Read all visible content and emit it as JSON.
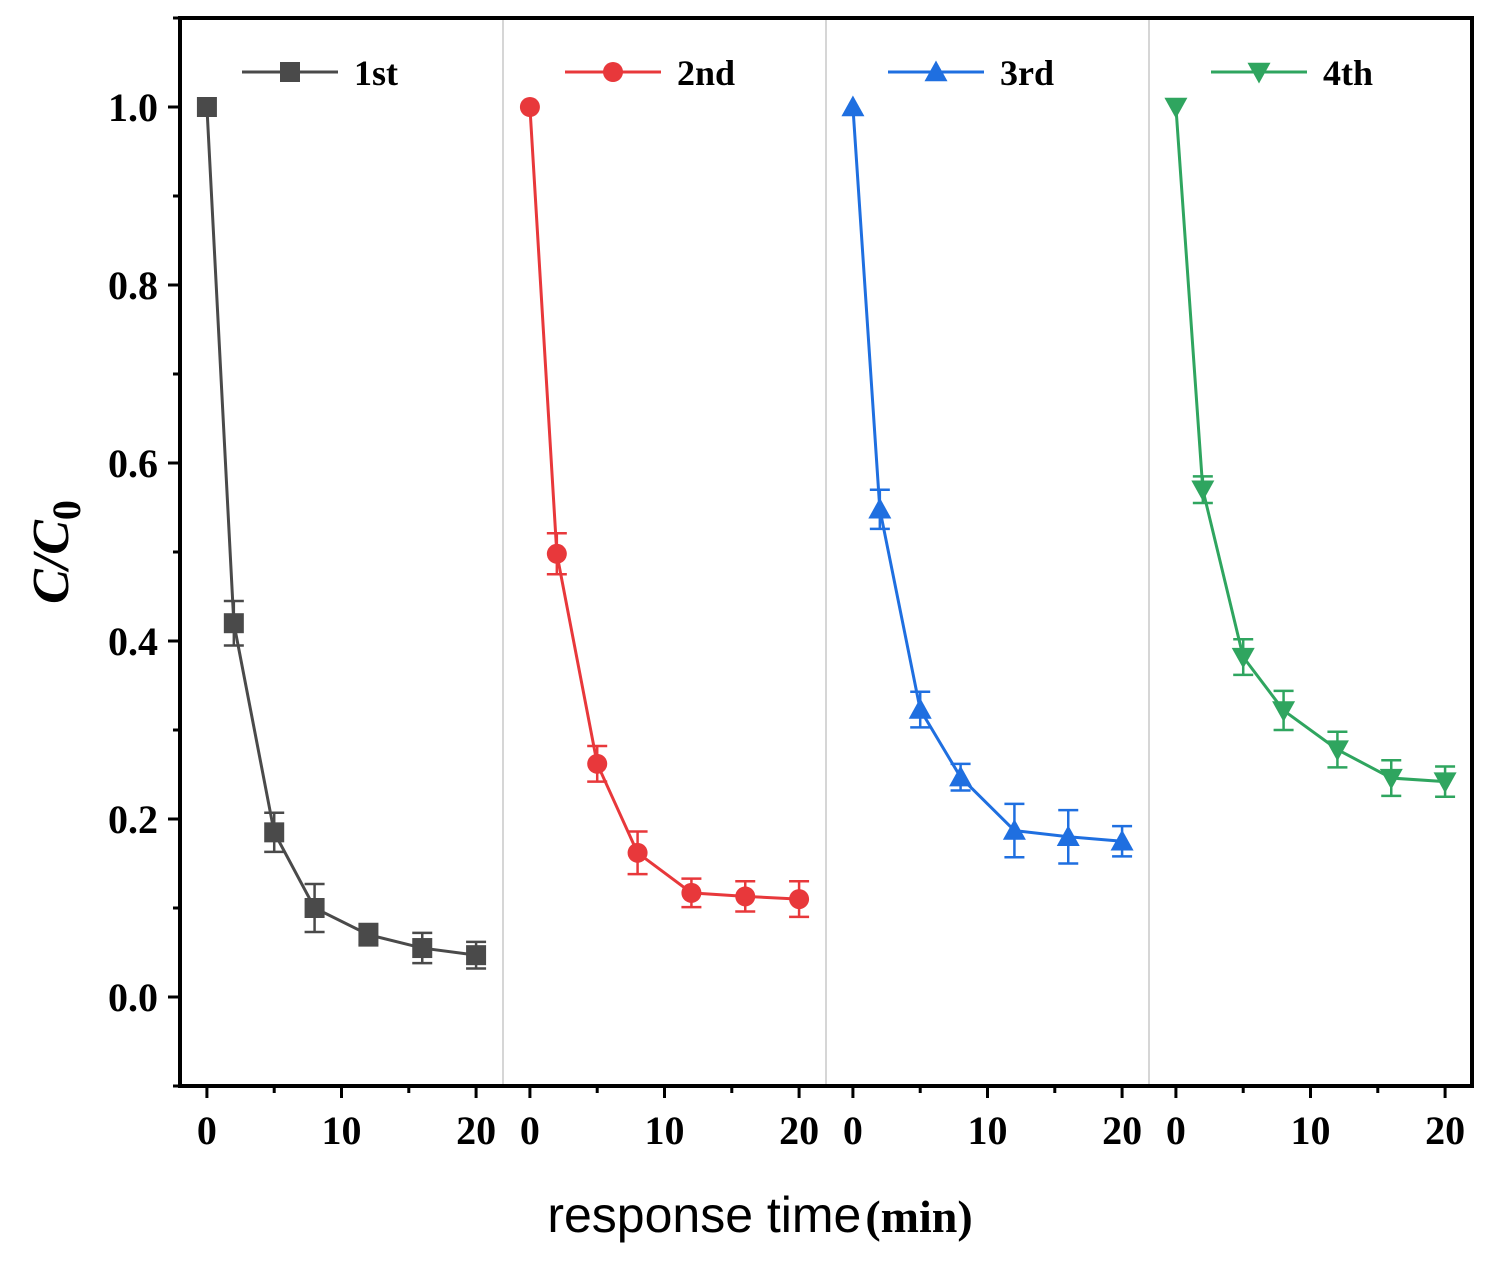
{
  "chart_data": {
    "type": "line",
    "ylabel_main": "C/C",
    "ylabel_sub": "0",
    "xlabel_main": "response time",
    "xlabel_unit": "(min)",
    "ylim": [
      -0.1,
      1.1
    ],
    "yticks": [
      "0.0",
      "0.2",
      "0.4",
      "0.6",
      "0.8",
      "1.0"
    ],
    "ytick_values": [
      0.0,
      0.2,
      0.4,
      0.6,
      0.8,
      1.0
    ],
    "xlim": [
      -2,
      22
    ],
    "xticks": [
      "0",
      "10",
      "20"
    ],
    "xtick_values": [
      0,
      10,
      20
    ],
    "grid": false,
    "legend": "top of each panel",
    "panels": [
      {
        "name": "1st",
        "color": "#4a4a4a",
        "marker": "square",
        "x": [
          0,
          2,
          5,
          8,
          12,
          16,
          20
        ],
        "y": [
          1.0,
          0.42,
          0.185,
          0.1,
          0.07,
          0.055,
          0.047
        ],
        "err": [
          0.0,
          0.025,
          0.022,
          0.027,
          0.012,
          0.017,
          0.015
        ]
      },
      {
        "name": "2nd",
        "color": "#e8383b",
        "marker": "circle",
        "x": [
          0,
          2,
          5,
          8,
          12,
          16,
          20
        ],
        "y": [
          1.0,
          0.498,
          0.262,
          0.162,
          0.117,
          0.113,
          0.11
        ],
        "err": [
          0.0,
          0.023,
          0.02,
          0.024,
          0.016,
          0.017,
          0.02
        ]
      },
      {
        "name": "3rd",
        "color": "#1f6fe0",
        "marker": "triangle-up",
        "x": [
          0,
          2,
          5,
          8,
          12,
          16,
          20
        ],
        "y": [
          1.0,
          0.548,
          0.323,
          0.247,
          0.187,
          0.18,
          0.175
        ],
        "err": [
          0.0,
          0.022,
          0.02,
          0.015,
          0.03,
          0.03,
          0.017
        ]
      },
      {
        "name": "4th",
        "color": "#2fa55f",
        "marker": "triangle-down",
        "x": [
          0,
          2,
          5,
          8,
          12,
          16,
          20
        ],
        "y": [
          1.0,
          0.57,
          0.382,
          0.322,
          0.278,
          0.246,
          0.242
        ],
        "err": [
          0.0,
          0.015,
          0.02,
          0.022,
          0.02,
          0.02,
          0.017
        ]
      }
    ]
  }
}
